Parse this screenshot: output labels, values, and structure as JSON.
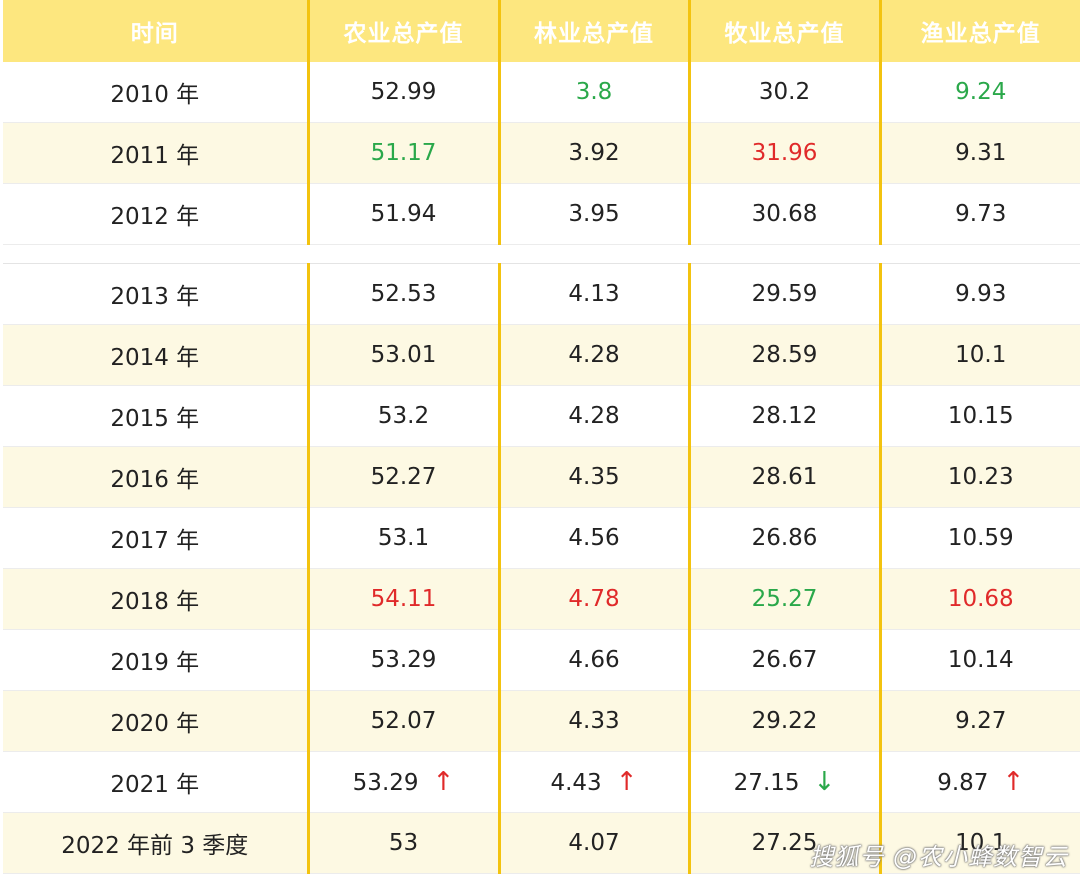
{
  "headers": [
    "时间",
    "农业总产值",
    "林业总产值",
    "牧业总产值",
    "渔业总产值"
  ],
  "rows_top": [
    {
      "year": "2010 年",
      "cells": [
        {
          "v": "52.99"
        },
        {
          "v": "3.8",
          "c": "green"
        },
        {
          "v": "30.2"
        },
        {
          "v": "9.24",
          "c": "green"
        }
      ]
    },
    {
      "year": "2011 年",
      "cells": [
        {
          "v": "51.17",
          "c": "green"
        },
        {
          "v": "3.92"
        },
        {
          "v": "31.96",
          "c": "red"
        },
        {
          "v": "9.31"
        }
      ]
    },
    {
      "year": "2012 年",
      "cells": [
        {
          "v": "51.94"
        },
        {
          "v": "3.95"
        },
        {
          "v": "30.68"
        },
        {
          "v": "9.73"
        }
      ]
    }
  ],
  "rows_bottom": [
    {
      "year": "2013 年",
      "cells": [
        {
          "v": "52.53"
        },
        {
          "v": "4.13"
        },
        {
          "v": "29.59"
        },
        {
          "v": "9.93"
        }
      ]
    },
    {
      "year": "2014 年",
      "cells": [
        {
          "v": "53.01"
        },
        {
          "v": "4.28"
        },
        {
          "v": "28.59"
        },
        {
          "v": "10.1"
        }
      ]
    },
    {
      "year": "2015 年",
      "cells": [
        {
          "v": "53.2"
        },
        {
          "v": "4.28"
        },
        {
          "v": "28.12"
        },
        {
          "v": "10.15"
        }
      ]
    },
    {
      "year": "2016 年",
      "cells": [
        {
          "v": "52.27"
        },
        {
          "v": "4.35"
        },
        {
          "v": "28.61"
        },
        {
          "v": "10.23"
        }
      ]
    },
    {
      "year": "2017 年",
      "cells": [
        {
          "v": "53.1"
        },
        {
          "v": "4.56"
        },
        {
          "v": "26.86"
        },
        {
          "v": "10.59"
        }
      ]
    },
    {
      "year": "2018 年",
      "cells": [
        {
          "v": "54.11",
          "c": "red"
        },
        {
          "v": "4.78",
          "c": "red"
        },
        {
          "v": "25.27",
          "c": "green"
        },
        {
          "v": "10.68",
          "c": "red"
        }
      ]
    },
    {
      "year": "2019 年",
      "cells": [
        {
          "v": "53.29"
        },
        {
          "v": "4.66"
        },
        {
          "v": "26.67"
        },
        {
          "v": "10.14"
        }
      ]
    },
    {
      "year": "2020 年",
      "cells": [
        {
          "v": "52.07"
        },
        {
          "v": "4.33"
        },
        {
          "v": "29.22"
        },
        {
          "v": "9.27"
        }
      ]
    },
    {
      "year": "2021 年",
      "cells": [
        {
          "v": "53.29",
          "arrow": "up"
        },
        {
          "v": "4.43",
          "arrow": "up"
        },
        {
          "v": "27.15",
          "arrow": "down"
        },
        {
          "v": "9.87",
          "arrow": "up"
        }
      ]
    },
    {
      "year": "2022 年前 3 季度",
      "cells": [
        {
          "v": "53"
        },
        {
          "v": "4.07"
        },
        {
          "v": "27.25"
        },
        {
          "v": "10.1"
        }
      ]
    }
  ],
  "arrows": {
    "up": "↑",
    "down": "↓"
  },
  "colors": {
    "green": "#2aa84a",
    "red": "#e02a2a",
    "header_bg": "#fde77f",
    "divider": "#f3c30f",
    "stripe": "#fdf9e3"
  },
  "watermark": "@农小蜂数智云",
  "watermark_prefix": "搜狐号"
}
